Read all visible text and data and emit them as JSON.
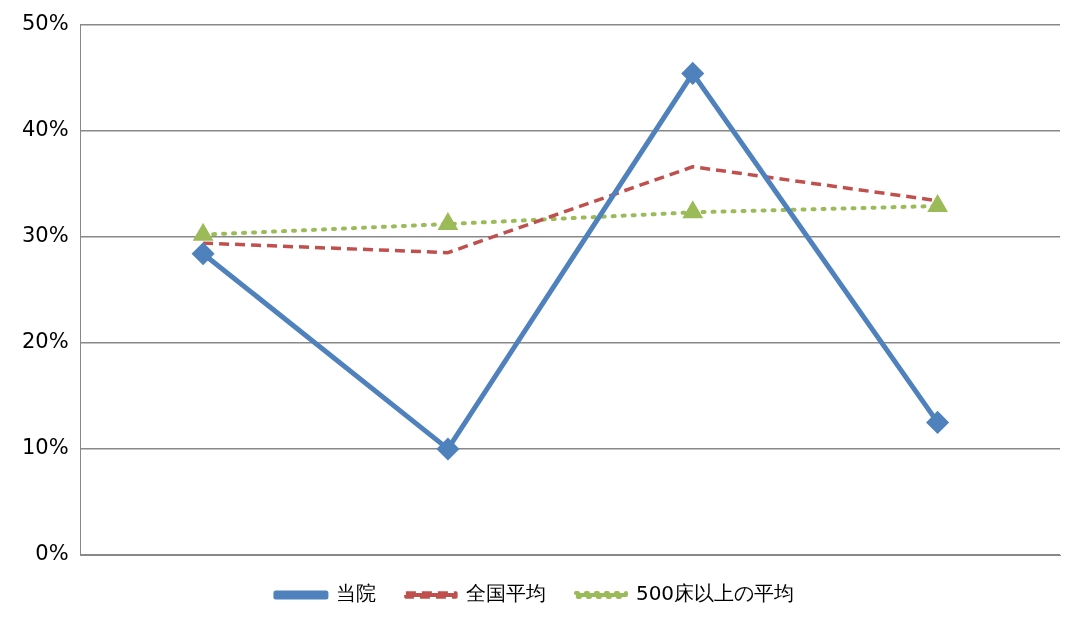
{
  "chart_data": {
    "type": "line",
    "categories": [
      null,
      null,
      null,
      null
    ],
    "series": [
      {
        "name": "当院",
        "color": "#4f81bd",
        "values": [
          28.4,
          10,
          45.4,
          12.5
        ],
        "marker": "diamond",
        "line_style": "solid"
      },
      {
        "name": "全国平均",
        "color": "#c0504d",
        "values": [
          29.4,
          28.5,
          36.6,
          33.4
        ],
        "marker": "none",
        "line_style": "dashed"
      },
      {
        "name": "500床以上の平均",
        "color": "#9bbb59",
        "values": [
          30.2,
          31.2,
          32.3,
          32.9
        ],
        "marker": "triangle",
        "line_style": "dotted"
      }
    ],
    "ylim": [
      0,
      50
    ],
    "yticks": [
      {
        "value": 0,
        "label": "0%"
      },
      {
        "value": 10,
        "label": "10%"
      },
      {
        "value": 20,
        "label": "20%"
      },
      {
        "value": 30,
        "label": "30%"
      },
      {
        "value": 40,
        "label": "40%"
      },
      {
        "value": 50,
        "label": "50%"
      }
    ],
    "grid": "y",
    "legend": "bottom",
    "tick_labels": "y"
  }
}
